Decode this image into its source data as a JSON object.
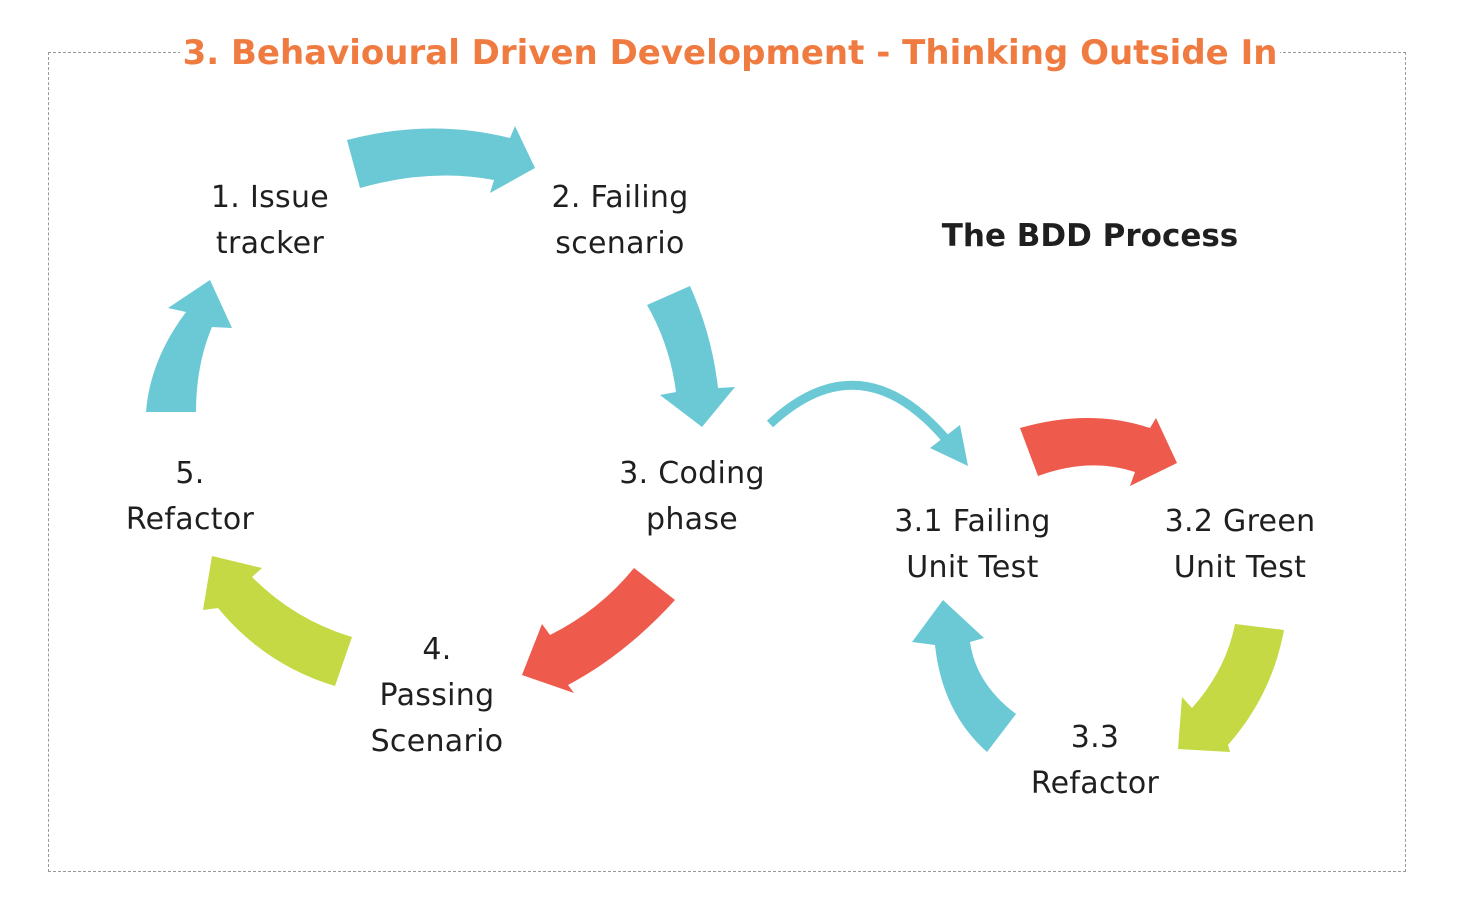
{
  "title": "3. Behavioural Driven Development - Thinking Outside In",
  "subtitle": "The BDD Process",
  "colors": {
    "title": "#ef7b41",
    "blue": "#6ac9d5",
    "red": "#ee5a4c",
    "green": "#c4d943",
    "text": "#1f1f1f",
    "frame": "#9a9a9a"
  },
  "nodes": {
    "issue_tracker": {
      "line1": "1. Issue",
      "line2": "tracker"
    },
    "failing_scenario": {
      "line1": "2. Failing",
      "line2": "scenario"
    },
    "coding_phase": {
      "line1": "3. Coding",
      "line2": "phase"
    },
    "passing_scenario": {
      "line1": "4.",
      "line2": "Passing",
      "line3": "Scenario"
    },
    "refactor": {
      "line1": "5.",
      "line2": "Refactor"
    },
    "failing_unit_test": {
      "line1": "3.1  Failing",
      "line2": "Unit Test"
    },
    "green_unit_test": {
      "line1": "3.2 Green",
      "line2": "Unit Test"
    },
    "unit_refactor": {
      "line1": "3.3",
      "line2": "Refactor"
    }
  }
}
